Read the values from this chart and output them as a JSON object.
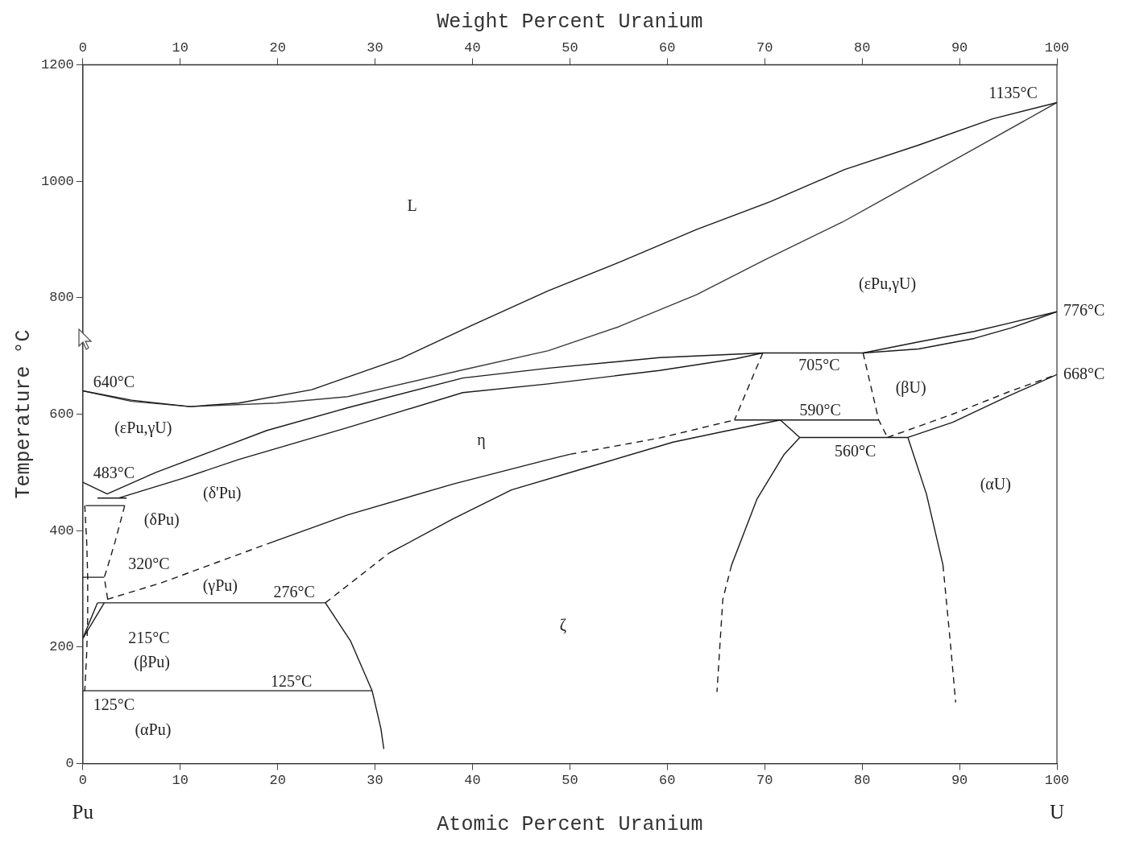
{
  "chart_data": {
    "type": "line",
    "xlabel": "Atomic Percent Uranium",
    "x2label": "Weight Percent Uranium",
    "ylabel": "Temperature °C",
    "xlim": [
      0,
      100
    ],
    "xticks": [
      0,
      10,
      20,
      30,
      40,
      50,
      60,
      70,
      80,
      90,
      100
    ],
    "x2lim": [
      0,
      100
    ],
    "x2ticks": [
      0,
      10,
      20,
      30,
      40,
      50,
      60,
      70,
      80,
      90,
      100
    ],
    "ylim": [
      0,
      1200
    ],
    "yticks": [
      0,
      200,
      400,
      600,
      800,
      1000,
      1200
    ],
    "grid": false,
    "legend": false,
    "marker": "none",
    "line_style": "solid",
    "series": [
      {
        "color": "#1a1a1a",
        "x": [
          0,
          5,
          11,
          16,
          23.5,
          32.7,
          40,
          47.8,
          55.4,
          63,
          70.6,
          78.2,
          85.8,
          93.4,
          100
        ],
        "values": [
          640,
          624,
          613,
          619,
          642,
          696,
          753,
          812,
          863,
          917,
          965,
          1020,
          1062,
          1107,
          1135
        ]
      },
      {
        "color": "#3a3a3a",
        "x": [
          0,
          5,
          11,
          19.9,
          27.2,
          39,
          47.8,
          55,
          63,
          70,
          78,
          85,
          92,
          100
        ],
        "values": [
          640,
          622,
          613,
          619,
          630,
          676,
          709,
          750,
          805,
          865,
          930,
          995,
          1060,
          1135
        ]
      },
      {
        "color": "#1a1a1a",
        "x": [
          2.5,
          7.5,
          13.2,
          18.9,
          27.2,
          39,
          47.8,
          59.2,
          69.8,
          80.1,
          85.8,
          91.5,
          95.3,
          100
        ],
        "values": [
          463,
          500,
          536,
          572,
          611,
          662,
          679,
          697,
          705,
          705,
          724,
          742,
          757,
          776
        ]
      },
      {
        "color": "#1a1a1a",
        "x": [
          3.7,
          10.3,
          16,
          27.2,
          39,
          47.8,
          59.2,
          67,
          69.8
        ],
        "values": [
          456,
          490,
          522,
          577,
          637,
          652,
          675,
          695,
          705
        ]
      },
      {
        "color": "#1a1a1a",
        "x": [
          80.1,
          85.8,
          91.5,
          95.3,
          100
        ],
        "values": [
          705,
          712,
          730,
          748,
          776
        ]
      },
      {
        "color": "#1a1a1a",
        "line_style": "dashed",
        "x": [
          69.8,
          66.9
        ],
        "values": [
          705,
          590
        ]
      },
      {
        "color": "#1a1a1a",
        "line_style": "dashed",
        "x": [
          80.1,
          81.7,
          82.6
        ],
        "values": [
          705,
          590,
          560
        ]
      },
      {
        "color": "#1a1a1a",
        "x": [
          66.9,
          81.7
        ],
        "values": [
          590,
          590
        ]
      },
      {
        "color": "#1a1a1a",
        "x": [
          73.6,
          84.7,
          89.3,
          95,
          100
        ],
        "values": [
          560,
          560,
          586,
          631,
          668
        ]
      },
      {
        "color": "#1a1a1a",
        "x": [
          31.4,
          38,
          44,
          51.5,
          60.6,
          65.7,
          71.6,
          73.6
        ],
        "values": [
          361,
          420,
          470,
          507,
          552,
          570,
          590,
          560
        ]
      },
      {
        "color": "#1a1a1a",
        "line_style": "dashed",
        "x": [
          24.9,
          31.4
        ],
        "values": [
          276,
          361
        ]
      },
      {
        "color": "#1a1a1a",
        "line_style": "dashed",
        "x": [
          2.5,
          8,
          18.9
        ],
        "values": [
          282,
          310,
          377
        ]
      },
      {
        "color": "#1a1a1a",
        "x": [
          18.9,
          27.2,
          38,
          47.8,
          50
        ],
        "values": [
          377,
          427,
          480,
          522,
          531
        ]
      },
      {
        "color": "#1a1a1a",
        "line_style": "dashed",
        "x": [
          50,
          59.2,
          66.9
        ],
        "values": [
          531,
          559,
          590
        ]
      },
      {
        "color": "#1a1a1a",
        "x": [
          73.6,
          72,
          69.2,
          66.6
        ],
        "values": [
          560,
          531,
          454,
          341
        ]
      },
      {
        "color": "#1a1a1a",
        "line_style": "dashed",
        "x": [
          66.6,
          65.7,
          65.1
        ],
        "values": [
          341,
          282,
          123
        ]
      },
      {
        "color": "#1a1a1a",
        "x": [
          84.7,
          86.6,
          88.3
        ],
        "values": [
          560,
          463,
          341
        ]
      },
      {
        "color": "#1a1a1a",
        "line_style": "dashed",
        "x": [
          88.3,
          89.1,
          89.6
        ],
        "values": [
          341,
          200,
          105
        ]
      },
      {
        "color": "#1a1a1a",
        "line_style": "dashed",
        "x": [
          82.6,
          89.3,
          95,
          100
        ],
        "values": [
          560,
          600,
          638,
          668
        ]
      },
      {
        "color": "#1a1a1a",
        "x": [
          1.5,
          24.9
        ],
        "values": [
          276,
          276
        ]
      },
      {
        "color": "#1a1a1a",
        "x": [
          24.9,
          27.5,
          29.7,
          30.6,
          30.9
        ],
        "values": [
          276,
          210,
          125,
          60,
          25
        ]
      },
      {
        "color": "#1a1a1a",
        "x": [
          0,
          29.7
        ],
        "values": [
          125,
          125
        ]
      },
      {
        "color": "#1a1a1a",
        "x": [
          0,
          2.5
        ],
        "values": [
          483,
          463
        ]
      },
      {
        "color": "#1a1a1a",
        "x": [
          1.5,
          4.5
        ],
        "values": [
          456,
          456
        ]
      },
      {
        "color": "#1a1a1a",
        "x": [
          0.3,
          4.3
        ],
        "values": [
          443,
          443
        ]
      },
      {
        "color": "#1a1a1a",
        "line_style": "dashed",
        "x": [
          4.3,
          3.3,
          2.4,
          2.2,
          2.6
        ],
        "values": [
          443,
          380,
          330,
          320,
          277
        ]
      },
      {
        "color": "#1a1a1a",
        "x": [
          0,
          2.2
        ],
        "values": [
          320,
          320
        ]
      },
      {
        "color": "#1a1a1a",
        "line_style": "dashed",
        "x": [
          0.2,
          0.4,
          0.5,
          0.5,
          0.4,
          0.2
        ],
        "values": [
          443,
          380,
          320,
          250,
          190,
          125
        ]
      },
      {
        "color": "#1a1a1a",
        "x": [
          0,
          1.5
        ],
        "values": [
          215,
          276
        ]
      },
      {
        "color": "#1a1a1a",
        "x": [
          0,
          2.2
        ],
        "values": [
          215,
          276
        ]
      }
    ],
    "annotations": [
      "L",
      "(εPu,γU)",
      "(εPu,γU)",
      "η",
      "ζ",
      "(βU)",
      "(αU)",
      "(δ'Pu)",
      "(δPu)",
      "(γPu)",
      "(βPu)",
      "(αPu)",
      "1135°C",
      {
        "text": "776°C",
        "x": 100,
        "y": 776
      },
      {
        "text": "668°C",
        "x": 100,
        "y": 668
      },
      "640°C",
      "483°C",
      "320°C",
      "276°C",
      "215°C",
      "125°C",
      "125°C",
      "705°C",
      "590°C",
      "560°C",
      "Pu",
      "U"
    ]
  }
}
